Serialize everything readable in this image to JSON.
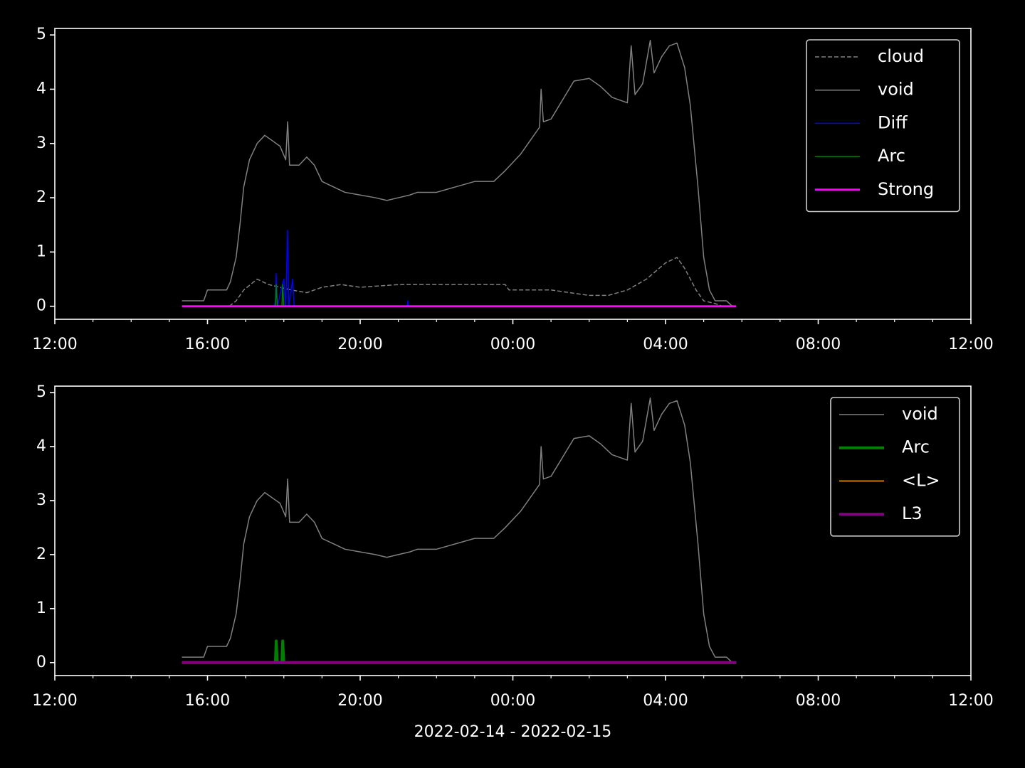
{
  "chart_data": [
    {
      "type": "line",
      "xlim": [
        0,
        24
      ],
      "ylim": [
        -0.24,
        5.12
      ],
      "xticks": [
        {
          "value": 0,
          "label": "12:00"
        },
        {
          "value": 4,
          "label": "16:00"
        },
        {
          "value": 8,
          "label": "20:00"
        },
        {
          "value": 12,
          "label": "00:00"
        },
        {
          "value": 16,
          "label": "04:00"
        },
        {
          "value": 20,
          "label": "08:00"
        },
        {
          "value": 24,
          "label": "12:00"
        }
      ],
      "xminorticks": [
        1,
        2,
        3,
        5,
        6,
        7,
        9,
        10,
        11,
        13,
        14,
        15,
        17,
        18,
        19,
        21,
        22,
        23
      ],
      "yticks": [
        0,
        1,
        2,
        3,
        4,
        5
      ],
      "legend": "upper right",
      "series": [
        {
          "name": "cloud",
          "color": "#808080",
          "linestyle": "dashed",
          "linewidth": 1.5,
          "x": [
            4.57,
            4.75,
            4.95,
            5.3,
            5.6,
            5.9,
            6.2,
            6.6,
            7.0,
            7.5,
            8.0,
            9.0,
            10.0,
            11.0,
            11.8,
            11.9,
            13.0,
            13.5,
            14.0,
            14.5,
            15.0,
            15.5,
            16.0,
            16.3,
            16.5,
            16.8,
            17.0,
            17.3,
            17.5
          ],
          "values": [
            0,
            0.1,
            0.3,
            0.5,
            0.4,
            0.35,
            0.3,
            0.25,
            0.35,
            0.4,
            0.35,
            0.4,
            0.4,
            0.4,
            0.4,
            0.3,
            0.3,
            0.25,
            0.2,
            0.2,
            0.3,
            0.5,
            0.8,
            0.9,
            0.7,
            0.3,
            0.1,
            0.05,
            0
          ]
        },
        {
          "name": "void",
          "color": "#808080",
          "linestyle": "solid",
          "linewidth": 1.5,
          "x": [
            3.33,
            3.9,
            4.0,
            4.5,
            4.6,
            4.75,
            4.85,
            4.95,
            5.1,
            5.3,
            5.5,
            5.7,
            5.9,
            6.05,
            6.1,
            6.15,
            6.4,
            6.6,
            6.8,
            7.0,
            7.3,
            7.6,
            8.0,
            8.4,
            8.7,
            9.0,
            9.3,
            9.5,
            10.0,
            10.5,
            11.0,
            11.5,
            11.8,
            12.2,
            12.5,
            12.7,
            12.74,
            12.8,
            13.0,
            13.3,
            13.6,
            14.0,
            14.3,
            14.6,
            15.0,
            15.1,
            15.2,
            15.4,
            15.6,
            15.7,
            15.9,
            16.1,
            16.3,
            16.5,
            16.65,
            16.85,
            17.0,
            17.15,
            17.3,
            17.6,
            17.75,
            17.85
          ],
          "values": [
            0.1,
            0.1,
            0.3,
            0.3,
            0.45,
            0.9,
            1.5,
            2.2,
            2.7,
            3.0,
            3.15,
            3.05,
            2.95,
            2.7,
            3.4,
            2.6,
            2.6,
            2.75,
            2.6,
            2.3,
            2.2,
            2.1,
            2.05,
            2.0,
            1.95,
            2.0,
            2.05,
            2.1,
            2.1,
            2.2,
            2.3,
            2.3,
            2.5,
            2.8,
            3.1,
            3.3,
            4.0,
            3.4,
            3.45,
            3.8,
            4.15,
            4.2,
            4.05,
            3.85,
            3.75,
            4.8,
            3.9,
            4.1,
            4.9,
            4.3,
            4.6,
            4.8,
            4.85,
            4.4,
            3.7,
            2.2,
            0.9,
            0.3,
            0.1,
            0.1,
            0,
            0
          ]
        },
        {
          "name": "Diff",
          "color": "#0000ff",
          "linestyle": "solid",
          "linewidth": 1.5,
          "x": [
            3.33,
            5.75,
            5.78,
            5.8,
            5.83,
            6.0,
            6.05,
            6.1,
            6.13,
            6.23,
            6.27,
            9.23,
            9.25,
            9.27,
            17.85
          ],
          "values": [
            0,
            0,
            0.1,
            0.6,
            0,
            0.5,
            0,
            1.4,
            0,
            0.5,
            0,
            0,
            0.1,
            0,
            0
          ]
        },
        {
          "name": "Arc",
          "color": "#008000",
          "linestyle": "solid",
          "linewidth": 1.5,
          "x": [
            3.33,
            5.78,
            5.8,
            5.83,
            5.95,
            5.97,
            6.0,
            17.85
          ],
          "values": [
            0,
            0,
            0.4,
            0,
            0,
            0.4,
            0,
            0
          ]
        },
        {
          "name": "Strong",
          "color": "#ff00ff",
          "linestyle": "solid",
          "linewidth": 3,
          "x": [
            3.33,
            17.85
          ],
          "values": [
            0,
            0
          ]
        }
      ]
    },
    {
      "type": "line",
      "xlim": [
        0,
        24
      ],
      "ylim": [
        -0.24,
        5.12
      ],
      "xlabel": "2022-02-14 - 2022-02-15",
      "xticks": [
        {
          "value": 0,
          "label": "12:00"
        },
        {
          "value": 4,
          "label": "16:00"
        },
        {
          "value": 8,
          "label": "20:00"
        },
        {
          "value": 12,
          "label": "00:00"
        },
        {
          "value": 16,
          "label": "04:00"
        },
        {
          "value": 20,
          "label": "08:00"
        },
        {
          "value": 24,
          "label": "12:00"
        }
      ],
      "xminorticks": [
        1,
        2,
        3,
        5,
        6,
        7,
        9,
        10,
        11,
        13,
        14,
        15,
        17,
        18,
        19,
        21,
        22,
        23
      ],
      "yticks": [
        0,
        1,
        2,
        3,
        4,
        5
      ],
      "legend": "upper right",
      "series": [
        {
          "name": "void",
          "color": "#808080",
          "linestyle": "solid",
          "linewidth": 1.5,
          "x": [
            3.33,
            3.9,
            4.0,
            4.5,
            4.6,
            4.75,
            4.85,
            4.95,
            5.1,
            5.3,
            5.5,
            5.7,
            5.9,
            6.05,
            6.1,
            6.15,
            6.4,
            6.6,
            6.8,
            7.0,
            7.3,
            7.6,
            8.0,
            8.4,
            8.7,
            9.0,
            9.3,
            9.5,
            10.0,
            10.5,
            11.0,
            11.5,
            11.8,
            12.2,
            12.5,
            12.7,
            12.74,
            12.8,
            13.0,
            13.3,
            13.6,
            14.0,
            14.3,
            14.6,
            15.0,
            15.1,
            15.2,
            15.4,
            15.6,
            15.7,
            15.9,
            16.1,
            16.3,
            16.5,
            16.65,
            16.85,
            17.0,
            17.15,
            17.3,
            17.6,
            17.75,
            17.85
          ],
          "values": [
            0.1,
            0.1,
            0.3,
            0.3,
            0.45,
            0.9,
            1.5,
            2.2,
            2.7,
            3.0,
            3.15,
            3.05,
            2.95,
            2.7,
            3.4,
            2.6,
            2.6,
            2.75,
            2.6,
            2.3,
            2.2,
            2.1,
            2.05,
            2.0,
            1.95,
            2.0,
            2.05,
            2.1,
            2.1,
            2.2,
            2.3,
            2.3,
            2.5,
            2.8,
            3.1,
            3.3,
            4.0,
            3.4,
            3.45,
            3.8,
            4.15,
            4.2,
            4.05,
            3.85,
            3.75,
            4.8,
            3.9,
            4.1,
            4.9,
            4.3,
            4.6,
            4.8,
            4.85,
            4.4,
            3.7,
            2.2,
            0.9,
            0.3,
            0.1,
            0.1,
            0,
            0
          ]
        },
        {
          "name": "Arc",
          "color": "#008000",
          "linestyle": "solid",
          "linewidth": 4,
          "x": [
            3.33,
            5.78,
            5.8,
            5.83,
            5.95,
            5.97,
            6.0,
            17.85
          ],
          "values": [
            0,
            0,
            0.4,
            0,
            0,
            0.4,
            0,
            0
          ]
        },
        {
          "name": "<L>",
          "color": "#ffa500",
          "linestyle": "solid",
          "linewidth": 1.5,
          "x": [
            3.33,
            17.85
          ],
          "values": [
            0,
            0
          ]
        },
        {
          "name": "L3",
          "color": "#800080",
          "linestyle": "solid",
          "linewidth": 4,
          "x": [
            3.33,
            17.85
          ],
          "values": [
            0,
            0
          ]
        }
      ]
    }
  ]
}
